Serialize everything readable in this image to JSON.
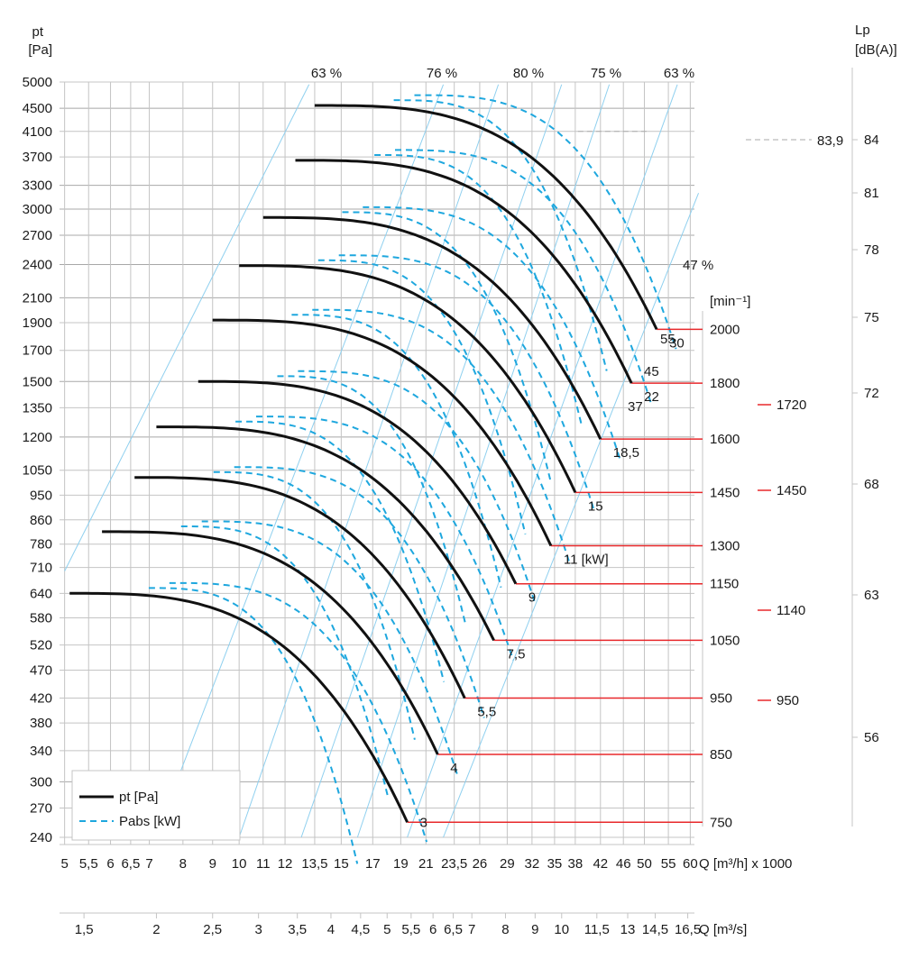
{
  "chart_data": {
    "type": "line",
    "y_axis": {
      "label": "pt",
      "unit": "[Pa]",
      "scale": "log",
      "ticks": [
        240,
        270,
        300,
        340,
        380,
        420,
        470,
        520,
        580,
        640,
        710,
        780,
        860,
        950,
        1050,
        1200,
        1350,
        1500,
        1700,
        1900,
        2100,
        2400,
        2700,
        3000,
        3300,
        3700,
        4100,
        4500,
        5000
      ]
    },
    "x_axis": {
      "label": "Q [m³/h] x 1000",
      "scale": "log",
      "ticks": [
        "5",
        "5,5",
        "6",
        "6,5",
        "7",
        "8",
        "9",
        "10",
        "11",
        "12",
        "13,5",
        "15",
        "17",
        "19",
        "21",
        "23,5",
        "26",
        "29",
        "32",
        "35",
        "38",
        "42",
        "46",
        "50",
        "55",
        "60"
      ],
      "tick_values": [
        5,
        5.5,
        6,
        6.5,
        7,
        8,
        9,
        10,
        11,
        12,
        13.5,
        15,
        17,
        19,
        21,
        23.5,
        26,
        29,
        32,
        35,
        38,
        42,
        46,
        50,
        55,
        60
      ]
    },
    "x_axis_secondary": {
      "label": "Q [m³/s]",
      "ticks": [
        "1,5",
        "2",
        "2,5",
        "3",
        "3,5",
        "4",
        "4,5",
        "5",
        "5,5",
        "6",
        "6,5",
        "7",
        "8",
        "9",
        "10",
        "11,5",
        "13",
        "14,5",
        "16,5"
      ],
      "tick_values": [
        1.5,
        2,
        2.5,
        3,
        3.5,
        4,
        4.5,
        5,
        5.5,
        6,
        6.5,
        7,
        8,
        9,
        10,
        11.5,
        13,
        14.5,
        16.5
      ]
    },
    "y_axis_right": {
      "label": "Lp",
      "unit": "[dB(A)]",
      "ticks": [
        "84",
        "81",
        "78",
        "75",
        "72",
        "68",
        "63",
        "56"
      ],
      "tick_values": [
        84,
        81,
        78,
        75,
        72,
        68,
        63,
        56
      ]
    },
    "rpm_unit": "[min⁻¹]",
    "efficiency_labels": [
      "63 %",
      "76 %",
      "80 %",
      "75 %",
      "63 %",
      "47 %"
    ],
    "legend": {
      "pt_label": "pt [Pa]",
      "pabs_label": "Pabs [kW]"
    },
    "annotation": {
      "value": "83,9",
      "q": 42,
      "p": 4100
    },
    "series": [
      {
        "name": "750",
        "rpm": 750,
        "start": [
          5.1,
          640
        ],
        "end": [
          19.5,
          255
        ],
        "kw": "3"
      },
      {
        "name": "850",
        "rpm": 850,
        "start": [
          5.8,
          820
        ],
        "end": [
          22,
          335
        ],
        "kw": "4"
      },
      {
        "name": "950",
        "rpm": 950,
        "start": [
          6.6,
          1020
        ],
        "end": [
          24.5,
          420
        ],
        "kw": "5,5"
      },
      {
        "name": "1050",
        "rpm": 1050,
        "start": [
          7.2,
          1250
        ],
        "end": [
          27.5,
          530
        ],
        "kw": "7,5"
      },
      {
        "name": "1150",
        "rpm": 1150,
        "start": [
          8.5,
          1500
        ],
        "end": [
          30,
          665
        ],
        "kw": "9"
      },
      {
        "name": "1300",
        "rpm": 1300,
        "start": [
          9,
          1920
        ],
        "end": [
          34.5,
          775
        ],
        "kw": "11 [kW]"
      },
      {
        "name": "1450",
        "rpm": 1450,
        "start": [
          10,
          2390
        ],
        "end": [
          38,
          960
        ],
        "kw": "15"
      },
      {
        "name": "1600",
        "rpm": 1600,
        "start": [
          11,
          2900
        ],
        "end": [
          42,
          1190
        ],
        "kw": "18,5"
      },
      {
        "name": "1800",
        "rpm": 1800,
        "start": [
          12.5,
          3650
        ],
        "end": [
          47.5,
          1490
        ],
        "kw": "22"
      },
      {
        "name": "2000",
        "rpm": 2000,
        "start": [
          13.5,
          4550
        ],
        "end": [
          52.5,
          1850
        ],
        "kw": "30"
      }
    ],
    "extra_kw_labels": [
      "37",
      "45",
      "55"
    ],
    "rpm_labels_right": [
      "1720",
      "1450",
      "1140",
      "950"
    ],
    "grid": true
  }
}
